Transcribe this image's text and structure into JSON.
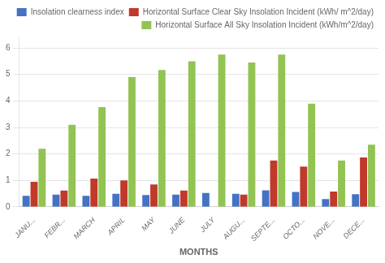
{
  "chart_data": {
    "type": "bar",
    "categories": [
      "JANU...",
      "FEBR...",
      "MARCH",
      "APRIL",
      "MAY",
      "JUNE",
      "JULY",
      "AUGU...",
      "SEPTE...",
      "OCTO...",
      "NOVE...",
      "DECE..."
    ],
    "series": [
      {
        "name": "Insolation clearness index",
        "color": "#4472c4",
        "values": [
          0.42,
          0.47,
          0.42,
          0.5,
          0.45,
          0.47,
          0.53,
          0.5,
          0.63,
          0.57,
          0.3,
          0.48
        ]
      },
      {
        "name": "Horizontal Surface Clear Sky Insolation Incident (kWh/ m^2/day)",
        "color": "#c0392b",
        "values": [
          0.95,
          0.62,
          1.07,
          1.0,
          0.85,
          0.62,
          0.0,
          0.47,
          1.75,
          1.52,
          0.58,
          1.87
        ]
      },
      {
        "name": "Horizontal Surface All Sky Insolation Incident (kWh/m^2/day)",
        "color": "#92c353",
        "values": [
          2.2,
          3.1,
          3.77,
          4.9,
          5.17,
          5.5,
          5.75,
          5.45,
          5.75,
          3.9,
          1.75,
          2.35
        ]
      }
    ],
    "xlabel": "MONTHS",
    "ylim": [
      0,
      6.4
    ],
    "yticks": [
      0,
      1,
      2,
      3,
      4,
      5,
      6
    ],
    "grid": true,
    "legend": "upper right"
  }
}
